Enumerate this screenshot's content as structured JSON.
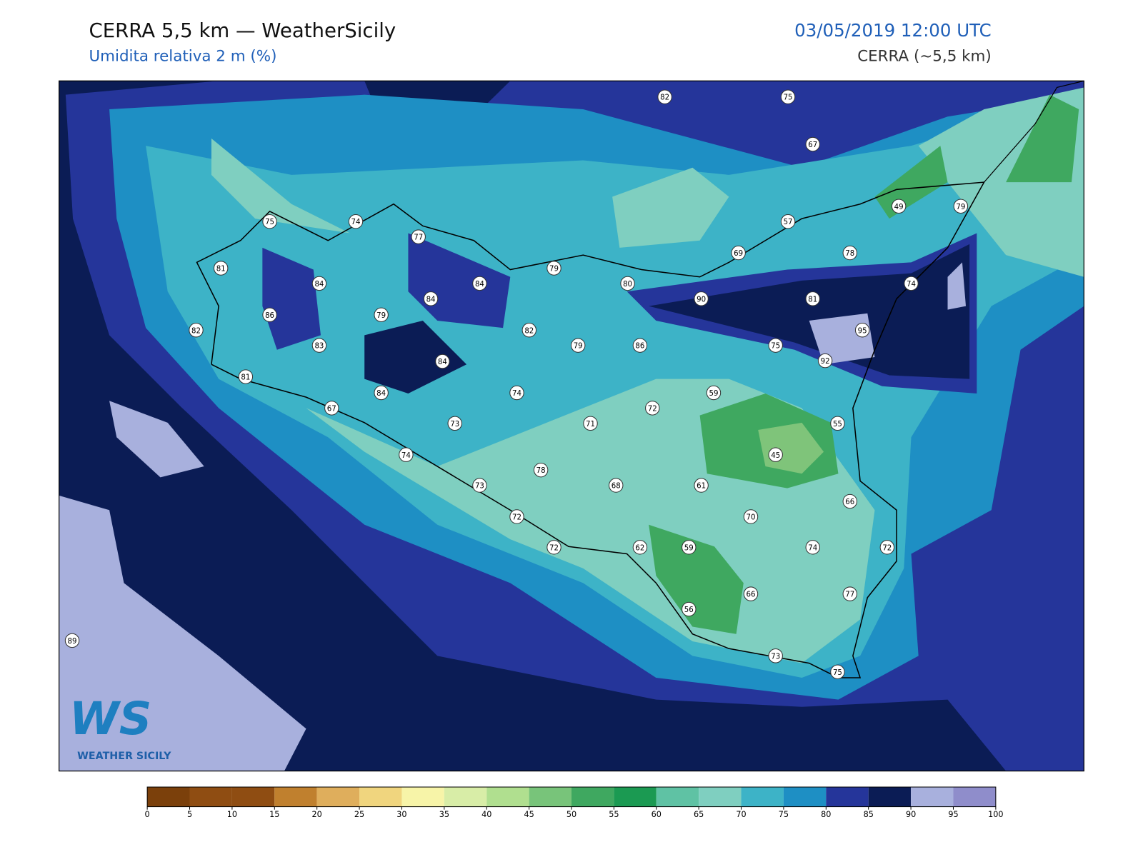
{
  "header": {
    "title": "CERRA 5,5 km — WeatherSicily",
    "subtitle": "Umidita relativa 2 m (%)",
    "datetime": "03/05/2019 12:00 UTC",
    "model": "CERRA (~5,5 km)"
  },
  "stations": [
    82,
    75,
    67,
    75,
    74,
    77,
    57,
    49,
    79,
    69,
    78,
    81,
    84,
    84,
    79,
    80,
    84,
    90,
    81,
    74,
    86,
    79,
    82,
    82,
    79,
    86,
    83,
    75,
    95,
    92,
    84,
    81,
    84,
    74,
    59,
    67,
    73,
    71,
    72,
    55,
    74,
    45,
    78,
    73,
    68,
    61,
    66,
    72,
    70,
    72,
    62,
    59,
    74,
    72,
    77,
    66,
    56,
    89,
    73,
    75
  ],
  "colorbar": {
    "ticks": [
      0,
      5,
      10,
      15,
      20,
      25,
      30,
      35,
      40,
      45,
      50,
      55,
      60,
      65,
      70,
      75,
      80,
      85,
      90,
      95,
      100
    ],
    "colors": [
      "#7b400b",
      "#8f4d12",
      "#8f4d12",
      "#c0802e",
      "#dfae5c",
      "#f0d57e",
      "#f7f4a8",
      "#d8eda7",
      "#b0df8f",
      "#78c47a",
      "#3fa860",
      "#1b9a52",
      "#5fc2a4",
      "#7fcfc0",
      "#3db3c7",
      "#1e8fc4",
      "#25359a",
      "#0b1c55",
      "#a8b0dd",
      "#8f8dcb"
    ]
  },
  "logo": {
    "mark": "WS",
    "name": "WEATHER SICILY"
  }
}
